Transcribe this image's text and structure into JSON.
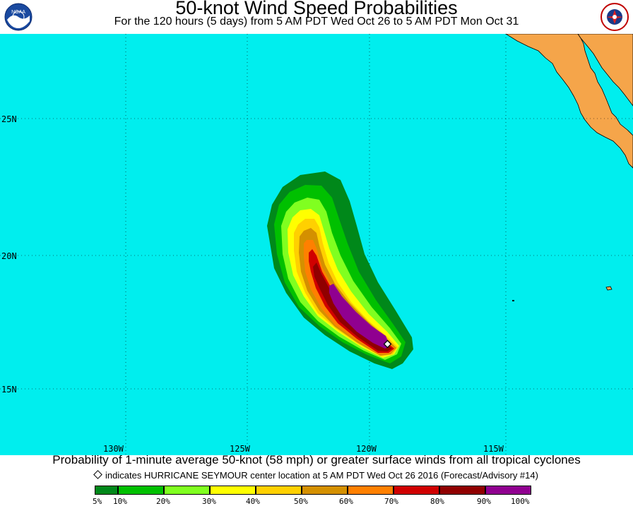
{
  "header": {
    "title": "50-knot Wind Speed Probabilities",
    "subtitle": "For the 120 hours (5 days) from 5 AM PDT Wed Oct 26 to 5 AM PDT Mon Oct 31",
    "left_logo": "noaa-logo",
    "right_logo": "nws-logo",
    "left_logo_text": "NOAA",
    "right_logo_text": "NATIONAL WEATHER SERVICE"
  },
  "map": {
    "ocean_color": "#00eeee",
    "land_color": "#f5a54a",
    "lat_labels": [
      "25N",
      "20N",
      "15N"
    ],
    "lon_labels": [
      "130W",
      "125W",
      "120W",
      "115W"
    ],
    "storm_marker": "diamond-icon"
  },
  "footer": {
    "caption": "Probability of 1-minute average 50-knot (58 mph) or greater surface winds from all tropical cyclones",
    "note": "indicates HURRICANE SEYMOUR center location at 5 AM PDT Wed Oct 26 2016 (Forecast/Advisory #14)"
  },
  "legend": {
    "colors": [
      "#00881a",
      "#00c000",
      "#80ff20",
      "#ffff00",
      "#ffd000",
      "#d49000",
      "#ff8000",
      "#d00000",
      "#900000",
      "#900090"
    ],
    "labels": [
      "5%",
      "10%",
      "20%",
      "30%",
      "40%",
      "50%",
      "60%",
      "70%",
      "80%",
      "90%",
      "100%"
    ]
  }
}
